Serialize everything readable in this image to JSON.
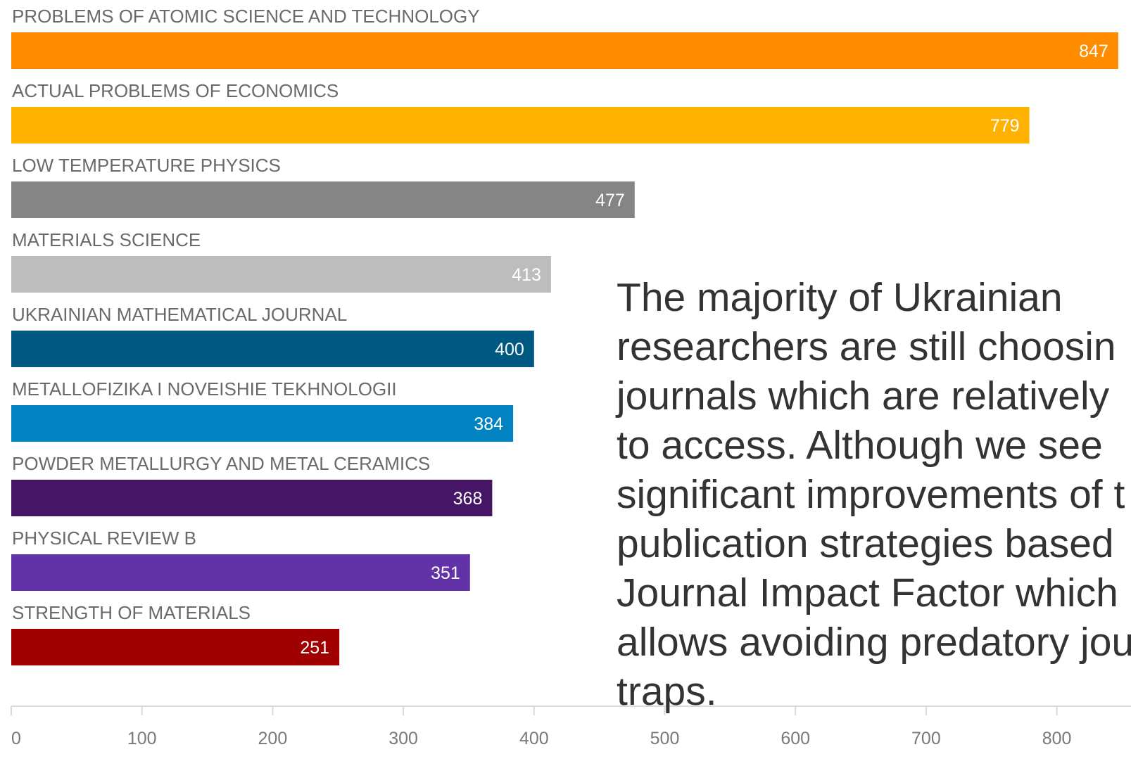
{
  "chart_data": {
    "type": "bar",
    "orientation": "horizontal",
    "categories": [
      "PROBLEMS OF ATOMIC SCIENCE AND TECHNOLOGY",
      "ACTUAL PROBLEMS OF ECONOMICS",
      "LOW TEMPERATURE PHYSICS",
      "MATERIALS SCIENCE",
      "UKRAINIAN MATHEMATICAL JOURNAL",
      "METALLOFIZIKA I NOVEISHIE TEKHNOLOGII",
      "POWDER METALLURGY AND METAL CERAMICS",
      "PHYSICAL REVIEW B",
      "STRENGTH OF MATERIALS"
    ],
    "values": [
      847,
      779,
      477,
      413,
      400,
      384,
      368,
      351,
      251
    ],
    "colors": [
      "#FF8C00",
      "#FFB300",
      "#858585",
      "#BDBDBD",
      "#005982",
      "#0083C0",
      "#461566",
      "#6233A6",
      "#A10000"
    ],
    "xlim": [
      0,
      847
    ],
    "x_ticks": [
      0,
      100,
      200,
      300,
      400,
      500,
      600,
      700,
      800
    ],
    "grid": false,
    "legend": "none"
  },
  "annotation": {
    "lines": [
      "The majority of Ukrainian",
      "researchers are still choosin",
      "journals which are relatively",
      "to access. Although we see",
      "significant improvements of t",
      "publication strategies based",
      "Journal Impact Factor which",
      "allows avoiding predatory jou",
      "traps."
    ]
  }
}
